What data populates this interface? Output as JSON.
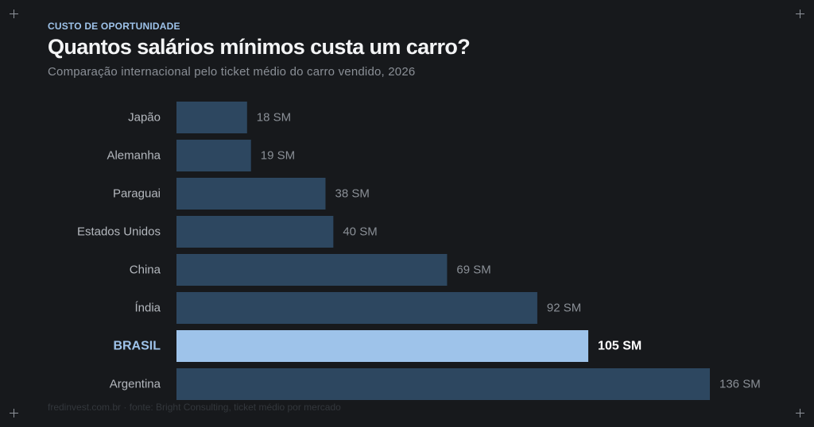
{
  "header": {
    "kicker": "CUSTO DE OPORTUNIDADE",
    "title": "Quantos salários mínimos custa um carro?",
    "subtitle": "Comparação internacional pelo ticket médio do carro vendido, 2026"
  },
  "footer": {
    "source": "fredinvest.com.br · fonte: Bright Consulting, ticket médio por mercado"
  },
  "colors": {
    "bar": "#2d4760",
    "highlight": "#9ec3ea",
    "background": "#17191c"
  },
  "chart_data": {
    "type": "bar",
    "orientation": "horizontal",
    "categories": [
      "Japão",
      "Alemanha",
      "Paraguai",
      "Estados Unidos",
      "China",
      "Índia",
      "BRASIL",
      "Argentina"
    ],
    "values": [
      18,
      19,
      38,
      40,
      69,
      92,
      105,
      136
    ],
    "value_labels": [
      "18 SM",
      "19 SM",
      "38 SM",
      "40 SM",
      "69 SM",
      "92 SM",
      "105 SM",
      "136 SM"
    ],
    "highlight": "BRASIL",
    "xlim": [
      0,
      136
    ],
    "grid": false,
    "legend": "none"
  }
}
